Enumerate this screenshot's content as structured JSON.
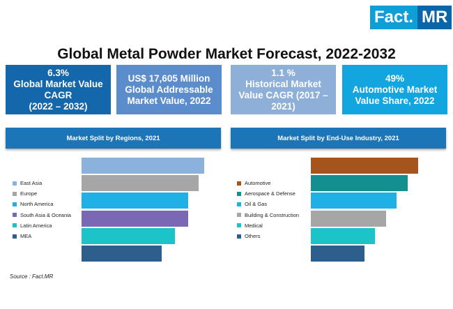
{
  "logo": {
    "part1": "Fact.",
    "part2": "MR"
  },
  "title": "Global Metal Powder Market Forecast, 2022-2032",
  "kpis": [
    {
      "lines": [
        "6.3%",
        "Global Market Value",
        "CAGR",
        "(2022 – 2032)"
      ],
      "color": "#1467aa"
    },
    {
      "lines": [
        "US$ 17,605 Million",
        "Global Addressable",
        "Market Value, 2022"
      ],
      "color": "#5b8ccb"
    },
    {
      "lines": [
        "1.1 %",
        "Historical Market",
        "Value CAGR (2017 –",
        "2021)"
      ],
      "color": "#8eb0d8"
    },
    {
      "lines": [
        "49%",
        "Automotive Market",
        "Value Share, 2022"
      ],
      "color": "#12a5e0"
    }
  ],
  "source": "Source : Fact.MR",
  "chart_data": [
    {
      "type": "bar",
      "title": "Market Split by Regions, 2021",
      "categories": [
        "East Asia",
        "Europe",
        "North America",
        "South Asia & Oceania",
        "Latin America",
        "MEA"
      ],
      "values": [
        23,
        22,
        20,
        20,
        17.5,
        15
      ],
      "colors": [
        "#8ab2dc",
        "#a6a6a6",
        "#1fb1e6",
        "#7b68b4",
        "#1cc4c9",
        "#2e5f8c"
      ],
      "value_labels_shown": false
    },
    {
      "type": "bar",
      "title": "Market Split by End-Use Industry, 2021",
      "categories": [
        "Automotive",
        "Aerospace & Defense",
        "Oil & Gas",
        "Building & Construction",
        "Medical",
        "Others"
      ],
      "values": [
        20,
        18,
        16,
        14,
        12,
        10
      ],
      "colors": [
        "#a6541e",
        "#138f8f",
        "#1fb1e6",
        "#a6a6a6",
        "#1cc4c9",
        "#2e5f8c"
      ],
      "value_labels_shown": false
    }
  ]
}
